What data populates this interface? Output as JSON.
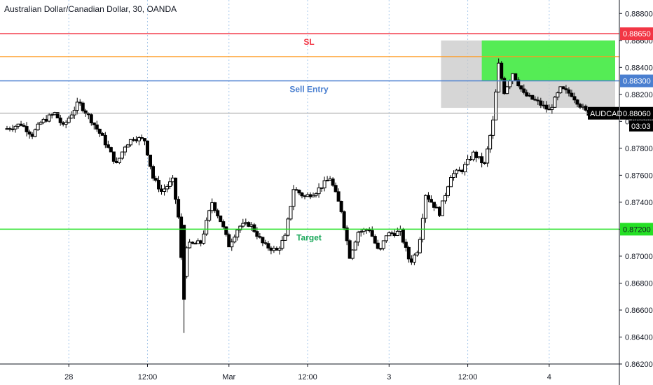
{
  "header": {
    "title": "Australian Dollar/Canadian Dollar, 30, OANDA"
  },
  "chart_data": {
    "type": "candlestick",
    "title": "Australian Dollar/Canadian Dollar, 30, OANDA",
    "ylim": [
      0.862,
      0.889
    ],
    "y_ticks": [
      "0.88800",
      "0.88600",
      "0.88400",
      "0.88200",
      "0.88000",
      "0.87800",
      "0.87600",
      "0.87400",
      "0.87200",
      "0.87000",
      "0.86800",
      "0.86600",
      "0.86400",
      "0.86200"
    ],
    "x_ticks": [
      {
        "label": "28",
        "bar": 44
      },
      {
        "label": "12:00",
        "bar": 100
      },
      {
        "label": "Mar",
        "bar": 158
      },
      {
        "label": "12:00",
        "bar": 214
      },
      {
        "label": "3",
        "bar": 272
      },
      {
        "label": "12:00",
        "bar": 328
      },
      {
        "label": "4",
        "bar": 386
      }
    ],
    "levels": [
      {
        "name": "sl",
        "label": "SL",
        "value": 0.8865,
        "badge": "0.88650",
        "color": "#f23645"
      },
      {
        "name": "sell-entry",
        "label": "Sell Entry",
        "value": 0.883,
        "badge": "0.88300",
        "color": "#4a7fd0"
      },
      {
        "name": "target",
        "label": "Target",
        "value": 0.872,
        "badge": "0.87200",
        "color": "#25e025"
      },
      {
        "name": "orange",
        "label": "",
        "value": 0.8848,
        "badge": null,
        "color": "#ff9a1f"
      }
    ],
    "current_price": {
      "symbol": "AUDCAD",
      "value": 0.8806,
      "badge": "0.88060",
      "countdown": "03:03"
    },
    "zones": [
      {
        "name": "gray-zone",
        "from_bar": 309,
        "to_bar": 438,
        "y_top": 0.886,
        "y_bottom": 0.881,
        "color": "#c8c8c8"
      },
      {
        "name": "green-zone",
        "from_bar": 338,
        "to_bar": 438,
        "y_top": 0.886,
        "y_bottom": 0.883,
        "color": "#3ef03e"
      }
    ],
    "anchors": [
      {
        "bar": 0,
        "price": 0.8794
      },
      {
        "bar": 12,
        "price": 0.8798
      },
      {
        "bar": 20,
        "price": 0.879
      },
      {
        "bar": 26,
        "price": 0.8799
      },
      {
        "bar": 36,
        "price": 0.8806
      },
      {
        "bar": 42,
        "price": 0.8796
      },
      {
        "bar": 53,
        "price": 0.8814
      },
      {
        "bar": 60,
        "price": 0.8804
      },
      {
        "bar": 70,
        "price": 0.8788
      },
      {
        "bar": 80,
        "price": 0.8768
      },
      {
        "bar": 86,
        "price": 0.8782
      },
      {
        "bar": 92,
        "price": 0.8788
      },
      {
        "bar": 100,
        "price": 0.8786
      },
      {
        "bar": 106,
        "price": 0.8758
      },
      {
        "bar": 112,
        "price": 0.8748
      },
      {
        "bar": 120,
        "price": 0.8756
      },
      {
        "bar": 125,
        "price": 0.8722
      },
      {
        "bar": 127,
        "price": 0.8674
      },
      {
        "bar": 130,
        "price": 0.8708
      },
      {
        "bar": 140,
        "price": 0.871
      },
      {
        "bar": 148,
        "price": 0.874
      },
      {
        "bar": 155,
        "price": 0.8724
      },
      {
        "bar": 160,
        "price": 0.8708
      },
      {
        "bar": 167,
        "price": 0.8722
      },
      {
        "bar": 175,
        "price": 0.8724
      },
      {
        "bar": 185,
        "price": 0.8708
      },
      {
        "bar": 194,
        "price": 0.8704
      },
      {
        "bar": 200,
        "price": 0.8714
      },
      {
        "bar": 206,
        "price": 0.875
      },
      {
        "bar": 214,
        "price": 0.8744
      },
      {
        "bar": 222,
        "price": 0.8748
      },
      {
        "bar": 232,
        "price": 0.8758
      },
      {
        "bar": 240,
        "price": 0.8734
      },
      {
        "bar": 246,
        "price": 0.87
      },
      {
        "bar": 252,
        "price": 0.8718
      },
      {
        "bar": 260,
        "price": 0.872
      },
      {
        "bar": 267,
        "price": 0.8702
      },
      {
        "bar": 272,
        "price": 0.8716
      },
      {
        "bar": 282,
        "price": 0.8718
      },
      {
        "bar": 289,
        "price": 0.8695
      },
      {
        "bar": 295,
        "price": 0.8706
      },
      {
        "bar": 300,
        "price": 0.8746
      },
      {
        "bar": 310,
        "price": 0.8732
      },
      {
        "bar": 318,
        "price": 0.876
      },
      {
        "bar": 326,
        "price": 0.8764
      },
      {
        "bar": 334,
        "price": 0.8776
      },
      {
        "bar": 342,
        "price": 0.8768
      },
      {
        "bar": 348,
        "price": 0.88
      },
      {
        "bar": 352,
        "price": 0.8842
      },
      {
        "bar": 356,
        "price": 0.8822
      },
      {
        "bar": 362,
        "price": 0.8836
      },
      {
        "bar": 370,
        "price": 0.882
      },
      {
        "bar": 380,
        "price": 0.8814
      },
      {
        "bar": 388,
        "price": 0.8808
      },
      {
        "bar": 396,
        "price": 0.8824
      },
      {
        "bar": 404,
        "price": 0.882
      },
      {
        "bar": 410,
        "price": 0.8812
      },
      {
        "bar": 415,
        "price": 0.8806
      }
    ],
    "bar_count": 416,
    "grid": true
  }
}
